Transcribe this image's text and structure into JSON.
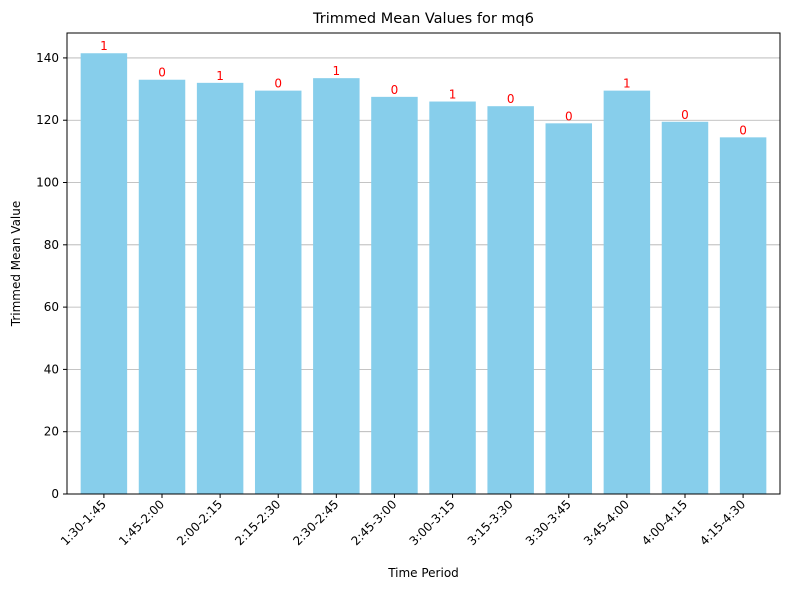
{
  "chart_data": {
    "type": "bar",
    "title": "Trimmed Mean Values for mq6",
    "xlabel": "Time Period",
    "ylabel": "Trimmed Mean Value",
    "categories": [
      "1:30-1:45",
      "1:45-2:00",
      "2:00-2:15",
      "2:15-2:30",
      "2:30-2:45",
      "2:45-3:00",
      "3:00-3:15",
      "3:15-3:30",
      "3:30-3:45",
      "3:45-4:00",
      "4:00-4:15",
      "4:15-4:30"
    ],
    "values": [
      141.5,
      133.0,
      132.0,
      129.5,
      133.5,
      127.5,
      126.0,
      124.5,
      119.0,
      129.5,
      119.5,
      114.5
    ],
    "bar_labels": [
      "1",
      "0",
      "1",
      "0",
      "1",
      "0",
      "1",
      "0",
      "0",
      "1",
      "0",
      "0"
    ],
    "ylim": [
      0,
      148
    ],
    "yticks": [
      0,
      20,
      40,
      60,
      80,
      100,
      120,
      140
    ],
    "grid": "y",
    "colors": {
      "bar": "#87ceeb",
      "label": "#ff0000",
      "grid": "#b0b0b0",
      "axis": "#000000"
    }
  }
}
